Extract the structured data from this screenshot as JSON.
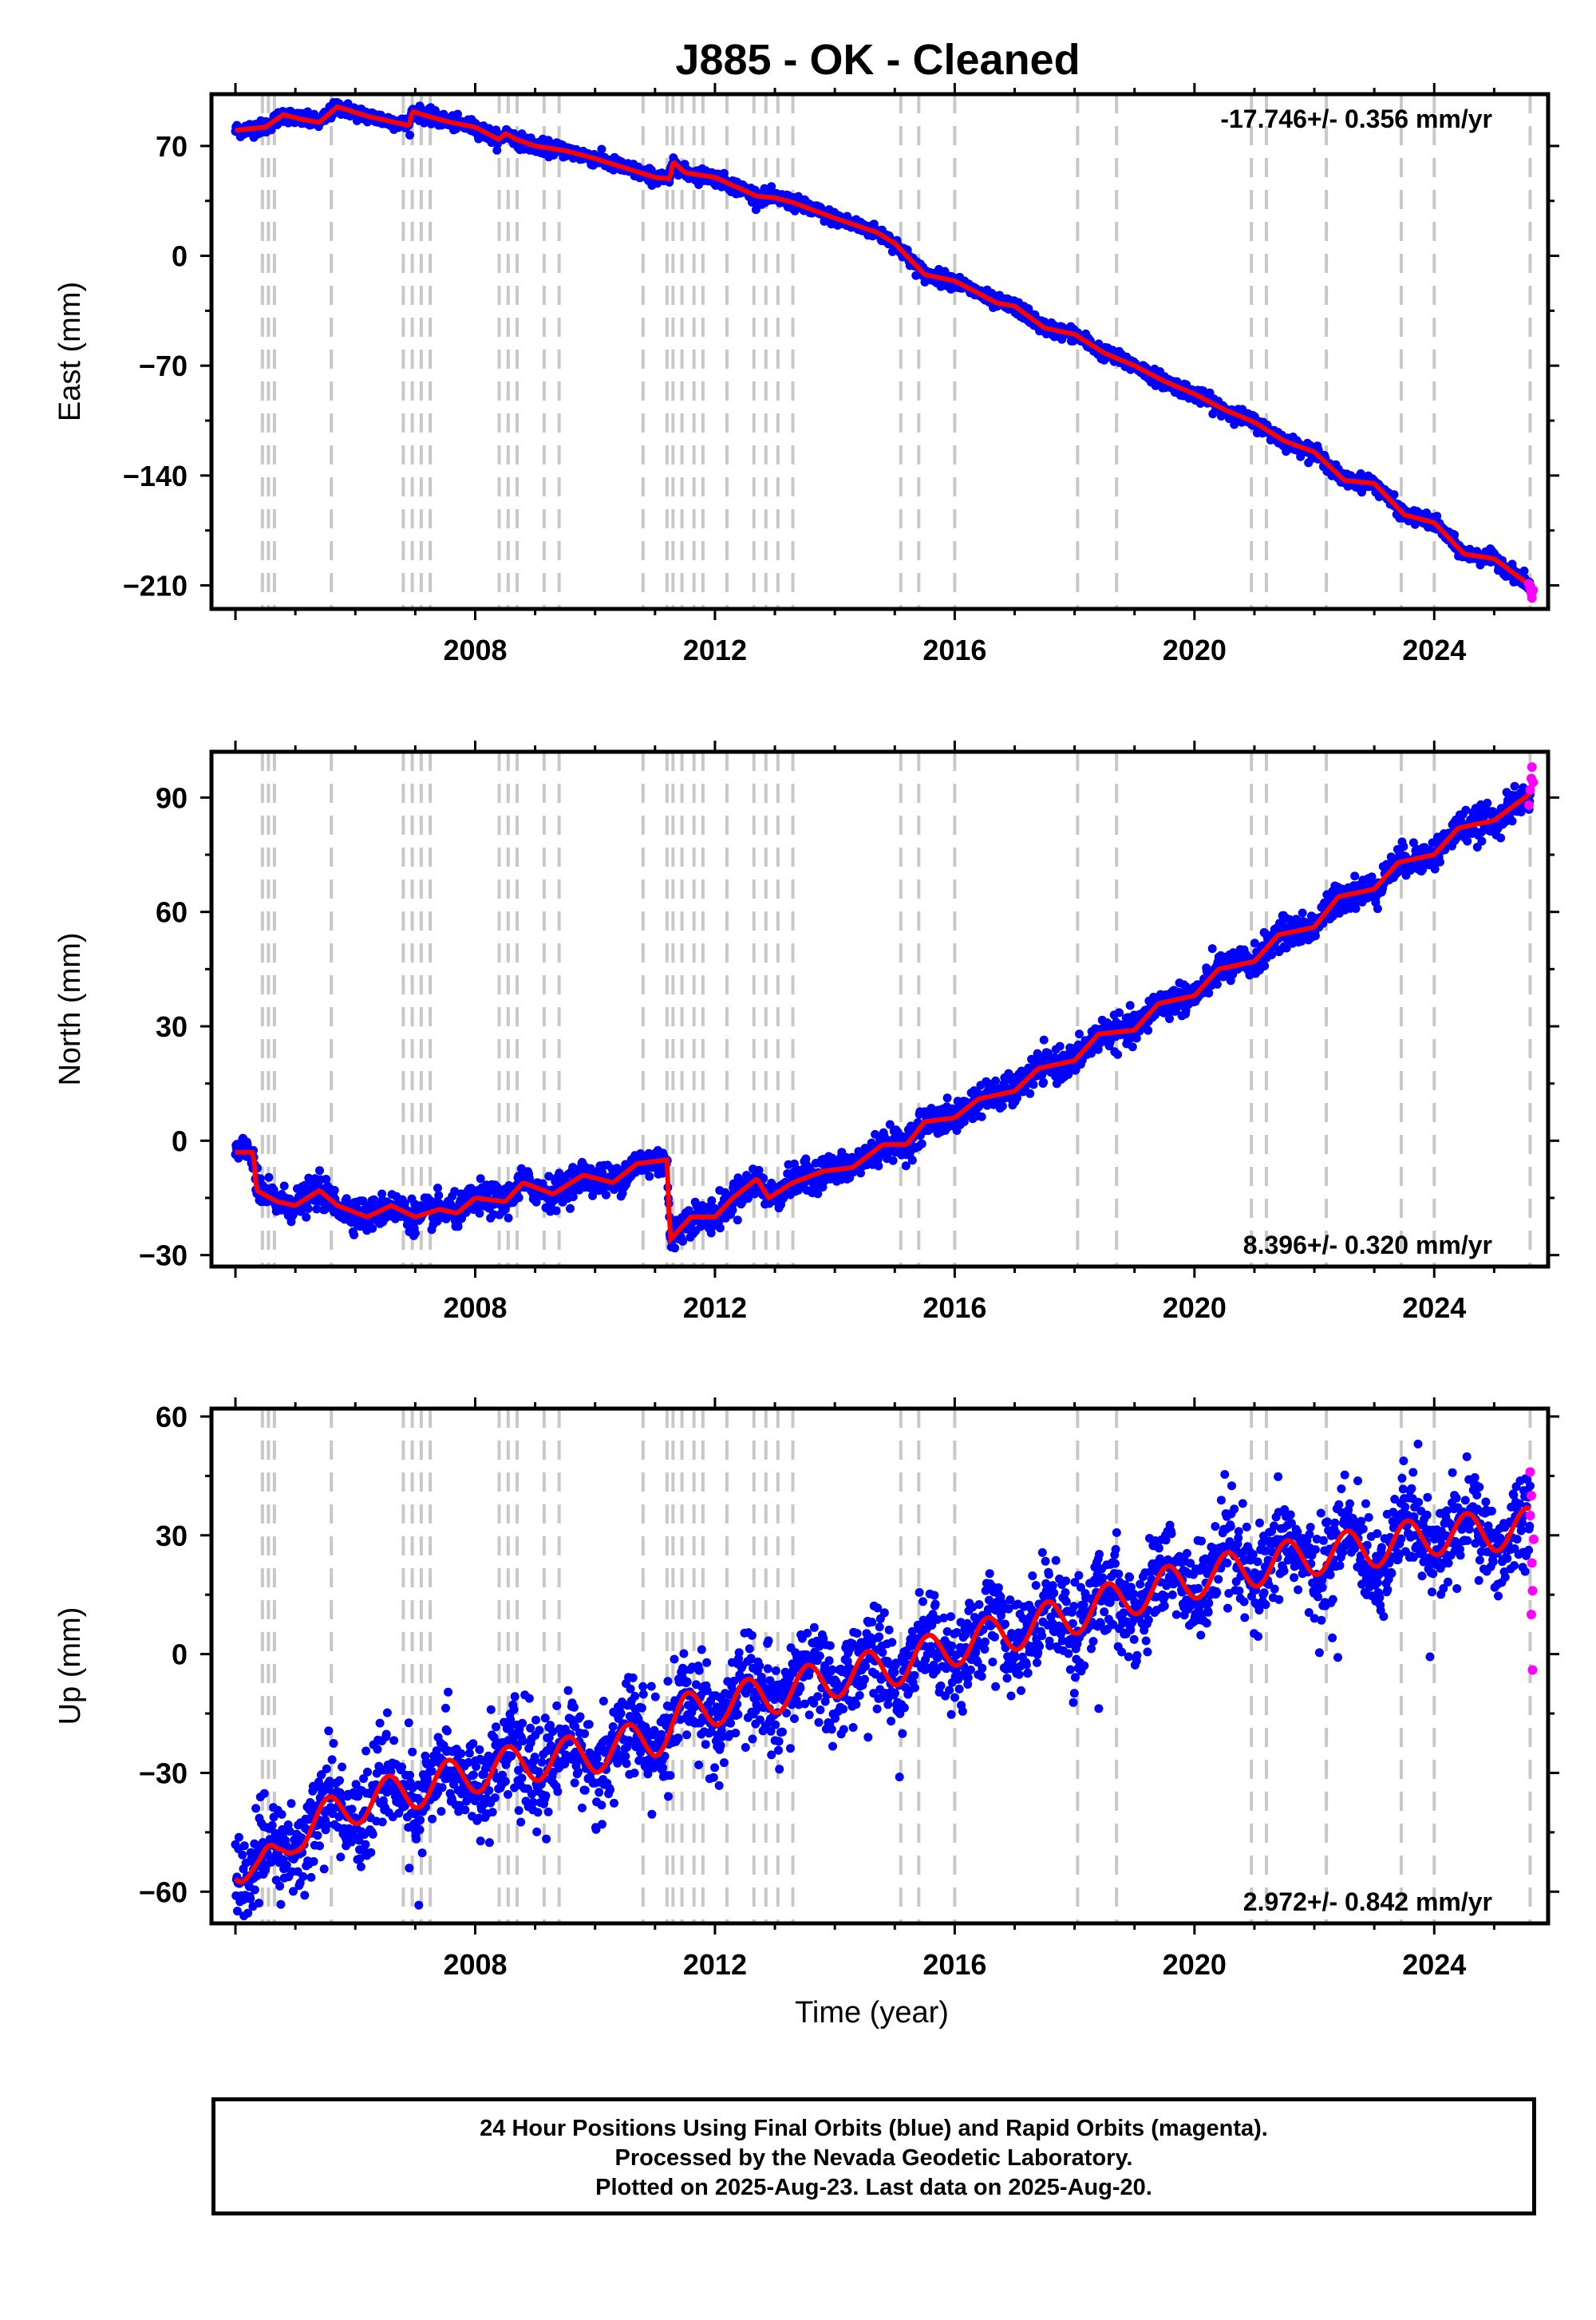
{
  "title": "J885  - OK - Cleaned",
  "footer": {
    "line1": "24 Hour Positions Using Final Orbits (blue) and Rapid Orbits (magenta).",
    "line2": "Processed by the Nevada Geodetic Laboratory.",
    "line3": "Plotted on 2025-Aug-23. Last data on 2025-Aug-20."
  },
  "colors": {
    "final_orbits": "#0000ff",
    "rapid_orbits": "#ff00ff",
    "model": "#ff0000",
    "steps": "#c8c8c8"
  },
  "chart_data": [
    {
      "type": "scatter",
      "ylabel": "East (mm)",
      "xlabel": "",
      "xlim": [
        2003.6,
        2025.9
      ],
      "ylim": [
        -225,
        103
      ],
      "xticks": [
        "2008",
        "2012",
        "2016",
        "2020",
        "2024"
      ],
      "yticks": [
        "70",
        "0",
        "−70",
        "−140",
        "−210"
      ],
      "ytick_values": [
        70,
        0,
        -70,
        -140,
        -210
      ],
      "rate_label": "-17.746+/- 0.356 mm/yr",
      "rate_position": "top-right",
      "noise": 2.2,
      "model": [
        [
          2004.0,
          80
        ],
        [
          2004.5,
          82
        ],
        [
          2004.8,
          90
        ],
        [
          2005.1,
          87
        ],
        [
          2005.4,
          85
        ],
        [
          2005.7,
          95
        ],
        [
          2006.2,
          89
        ],
        [
          2006.9,
          83
        ],
        [
          2006.95,
          92
        ],
        [
          2007.3,
          88
        ],
        [
          2007.6,
          85
        ],
        [
          2008.0,
          82
        ],
        [
          2008.4,
          74
        ],
        [
          2008.5,
          78
        ],
        [
          2008.7,
          74
        ],
        [
          2009.0,
          70
        ],
        [
          2009.5,
          67
        ],
        [
          2010.0,
          62
        ],
        [
          2010.5,
          56
        ],
        [
          2011.0,
          50
        ],
        [
          2011.25,
          49
        ],
        [
          2011.3,
          60
        ],
        [
          2011.5,
          53
        ],
        [
          2012.0,
          50
        ],
        [
          2012.7,
          38
        ],
        [
          2013.0,
          37
        ],
        [
          2013.3,
          34
        ],
        [
          2014.0,
          24
        ],
        [
          2014.7,
          15
        ],
        [
          2015.0,
          8
        ],
        [
          2015.5,
          -12
        ],
        [
          2016.0,
          -16
        ],
        [
          2016.7,
          -30
        ],
        [
          2017.0,
          -32
        ],
        [
          2017.5,
          -46
        ],
        [
          2018.0,
          -50
        ],
        [
          2018.5,
          -62
        ],
        [
          2019.0,
          -70
        ],
        [
          2019.5,
          -80
        ],
        [
          2020.0,
          -88
        ],
        [
          2020.5,
          -98
        ],
        [
          2021.0,
          -106
        ],
        [
          2021.5,
          -118
        ],
        [
          2022.0,
          -125
        ],
        [
          2022.5,
          -143
        ],
        [
          2023.0,
          -145
        ],
        [
          2023.5,
          -165
        ],
        [
          2024.0,
          -170
        ],
        [
          2024.5,
          -190
        ],
        [
          2025.0,
          -193
        ],
        [
          2025.6,
          -210
        ]
      ],
      "rapid_orbits": [
        [
          2025.58,
          -209
        ],
        [
          2025.6,
          -212
        ],
        [
          2025.62,
          -215
        ],
        [
          2025.63,
          -218
        ],
        [
          2025.65,
          -213
        ]
      ]
    },
    {
      "type": "scatter",
      "ylabel": "North (mm)",
      "xlabel": "",
      "xlim": [
        2003.6,
        2025.9
      ],
      "ylim": [
        -33,
        102
      ],
      "xticks": [
        "2008",
        "2012",
        "2016",
        "2020",
        "2024"
      ],
      "yticks": [
        "90",
        "60",
        "30",
        "0",
        "−30"
      ],
      "ytick_values": [
        90,
        60,
        30,
        0,
        -30
      ],
      "rate_label": "8.396+/- 0.320 mm/yr",
      "rate_position": "bottom-right",
      "noise": 2.0,
      "model": [
        [
          2004.0,
          -3
        ],
        [
          2004.3,
          -3
        ],
        [
          2004.35,
          -13
        ],
        [
          2004.7,
          -16
        ],
        [
          2005.0,
          -17
        ],
        [
          2005.4,
          -13
        ],
        [
          2005.7,
          -17
        ],
        [
          2006.2,
          -20
        ],
        [
          2006.6,
          -17
        ],
        [
          2007.0,
          -20
        ],
        [
          2007.4,
          -18
        ],
        [
          2007.7,
          -19
        ],
        [
          2008.0,
          -15
        ],
        [
          2008.5,
          -16
        ],
        [
          2008.8,
          -11
        ],
        [
          2009.3,
          -14
        ],
        [
          2009.8,
          -9
        ],
        [
          2010.3,
          -11
        ],
        [
          2010.7,
          -6
        ],
        [
          2011.2,
          -5
        ],
        [
          2011.25,
          -26
        ],
        [
          2011.6,
          -20
        ],
        [
          2012.0,
          -20
        ],
        [
          2012.3,
          -15
        ],
        [
          2012.7,
          -10
        ],
        [
          2012.9,
          -15
        ],
        [
          2013.3,
          -11
        ],
        [
          2013.8,
          -8
        ],
        [
          2014.3,
          -7
        ],
        [
          2014.8,
          -1
        ],
        [
          2015.2,
          -1
        ],
        [
          2015.5,
          5
        ],
        [
          2016.0,
          6
        ],
        [
          2016.4,
          11
        ],
        [
          2017.0,
          13
        ],
        [
          2017.4,
          19
        ],
        [
          2018.0,
          21
        ],
        [
          2018.4,
          28
        ],
        [
          2019.0,
          29
        ],
        [
          2019.4,
          36
        ],
        [
          2020.0,
          38
        ],
        [
          2020.4,
          45
        ],
        [
          2021.0,
          47
        ],
        [
          2021.4,
          54
        ],
        [
          2022.0,
          56
        ],
        [
          2022.4,
          64
        ],
        [
          2023.0,
          66
        ],
        [
          2023.4,
          73
        ],
        [
          2024.0,
          75
        ],
        [
          2024.4,
          82
        ],
        [
          2025.0,
          84
        ],
        [
          2025.6,
          91
        ]
      ],
      "rapid_orbits": [
        [
          2025.58,
          88
        ],
        [
          2025.6,
          92
        ],
        [
          2025.62,
          95
        ],
        [
          2025.63,
          98
        ],
        [
          2025.65,
          94
        ]
      ]
    },
    {
      "type": "scatter",
      "ylabel": "Up (mm)",
      "xlabel": "Time (year)",
      "xlim": [
        2003.6,
        2025.9
      ],
      "ylim": [
        -68,
        62
      ],
      "xticks": [
        "2008",
        "2012",
        "2016",
        "2020",
        "2024"
      ],
      "yticks": [
        "60",
        "30",
        "0",
        "−30",
        "−60"
      ],
      "ytick_values": [
        60,
        30,
        0,
        -30,
        -60
      ],
      "rate_label": "2.972+/- 0.842 mm/yr",
      "rate_position": "bottom-right",
      "noise": 6.0,
      "seasonal_amplitude": 5,
      "model": [
        [
          2004.0,
          -52
        ],
        [
          2004.4,
          -55
        ],
        [
          2004.7,
          -52
        ],
        [
          2005.0,
          -45
        ],
        [
          2006.0,
          -38
        ],
        [
          2007.0,
          -34
        ],
        [
          2008.0,
          -30
        ],
        [
          2009.0,
          -27
        ],
        [
          2010.0,
          -25
        ],
        [
          2011.0,
          -21
        ],
        [
          2011.5,
          -15
        ],
        [
          2012.0,
          -13
        ],
        [
          2013.0,
          -10
        ],
        [
          2014.0,
          -6
        ],
        [
          2015.0,
          -3
        ],
        [
          2016.0,
          2
        ],
        [
          2017.0,
          6
        ],
        [
          2018.0,
          10
        ],
        [
          2019.0,
          15
        ],
        [
          2020.0,
          19
        ],
        [
          2021.0,
          22
        ],
        [
          2022.0,
          25
        ],
        [
          2023.0,
          27
        ],
        [
          2024.0,
          30
        ],
        [
          2025.0,
          31
        ],
        [
          2025.6,
          32
        ]
      ],
      "rapid_orbits": [
        [
          2025.6,
          46
        ],
        [
          2025.62,
          40
        ],
        [
          2025.63,
          23
        ],
        [
          2025.64,
          16
        ],
        [
          2025.62,
          10
        ],
        [
          2025.64,
          -4
        ],
        [
          2025.66,
          29
        ],
        [
          2025.6,
          35
        ]
      ]
    }
  ],
  "step_years": [
    2004.45,
    2004.55,
    2004.65,
    2005.6,
    2006.8,
    2006.95,
    2007.1,
    2007.25,
    2008.4,
    2008.55,
    2008.7,
    2009.15,
    2009.4,
    2010.8,
    2011.2,
    2011.3,
    2011.45,
    2011.65,
    2011.8,
    2012.2,
    2012.65,
    2012.85,
    2013.05,
    2013.3,
    2015.1,
    2015.4,
    2016.0,
    2018.05,
    2018.7,
    2020.95,
    2021.2,
    2022.2,
    2023.45,
    2024.0,
    2025.6
  ]
}
